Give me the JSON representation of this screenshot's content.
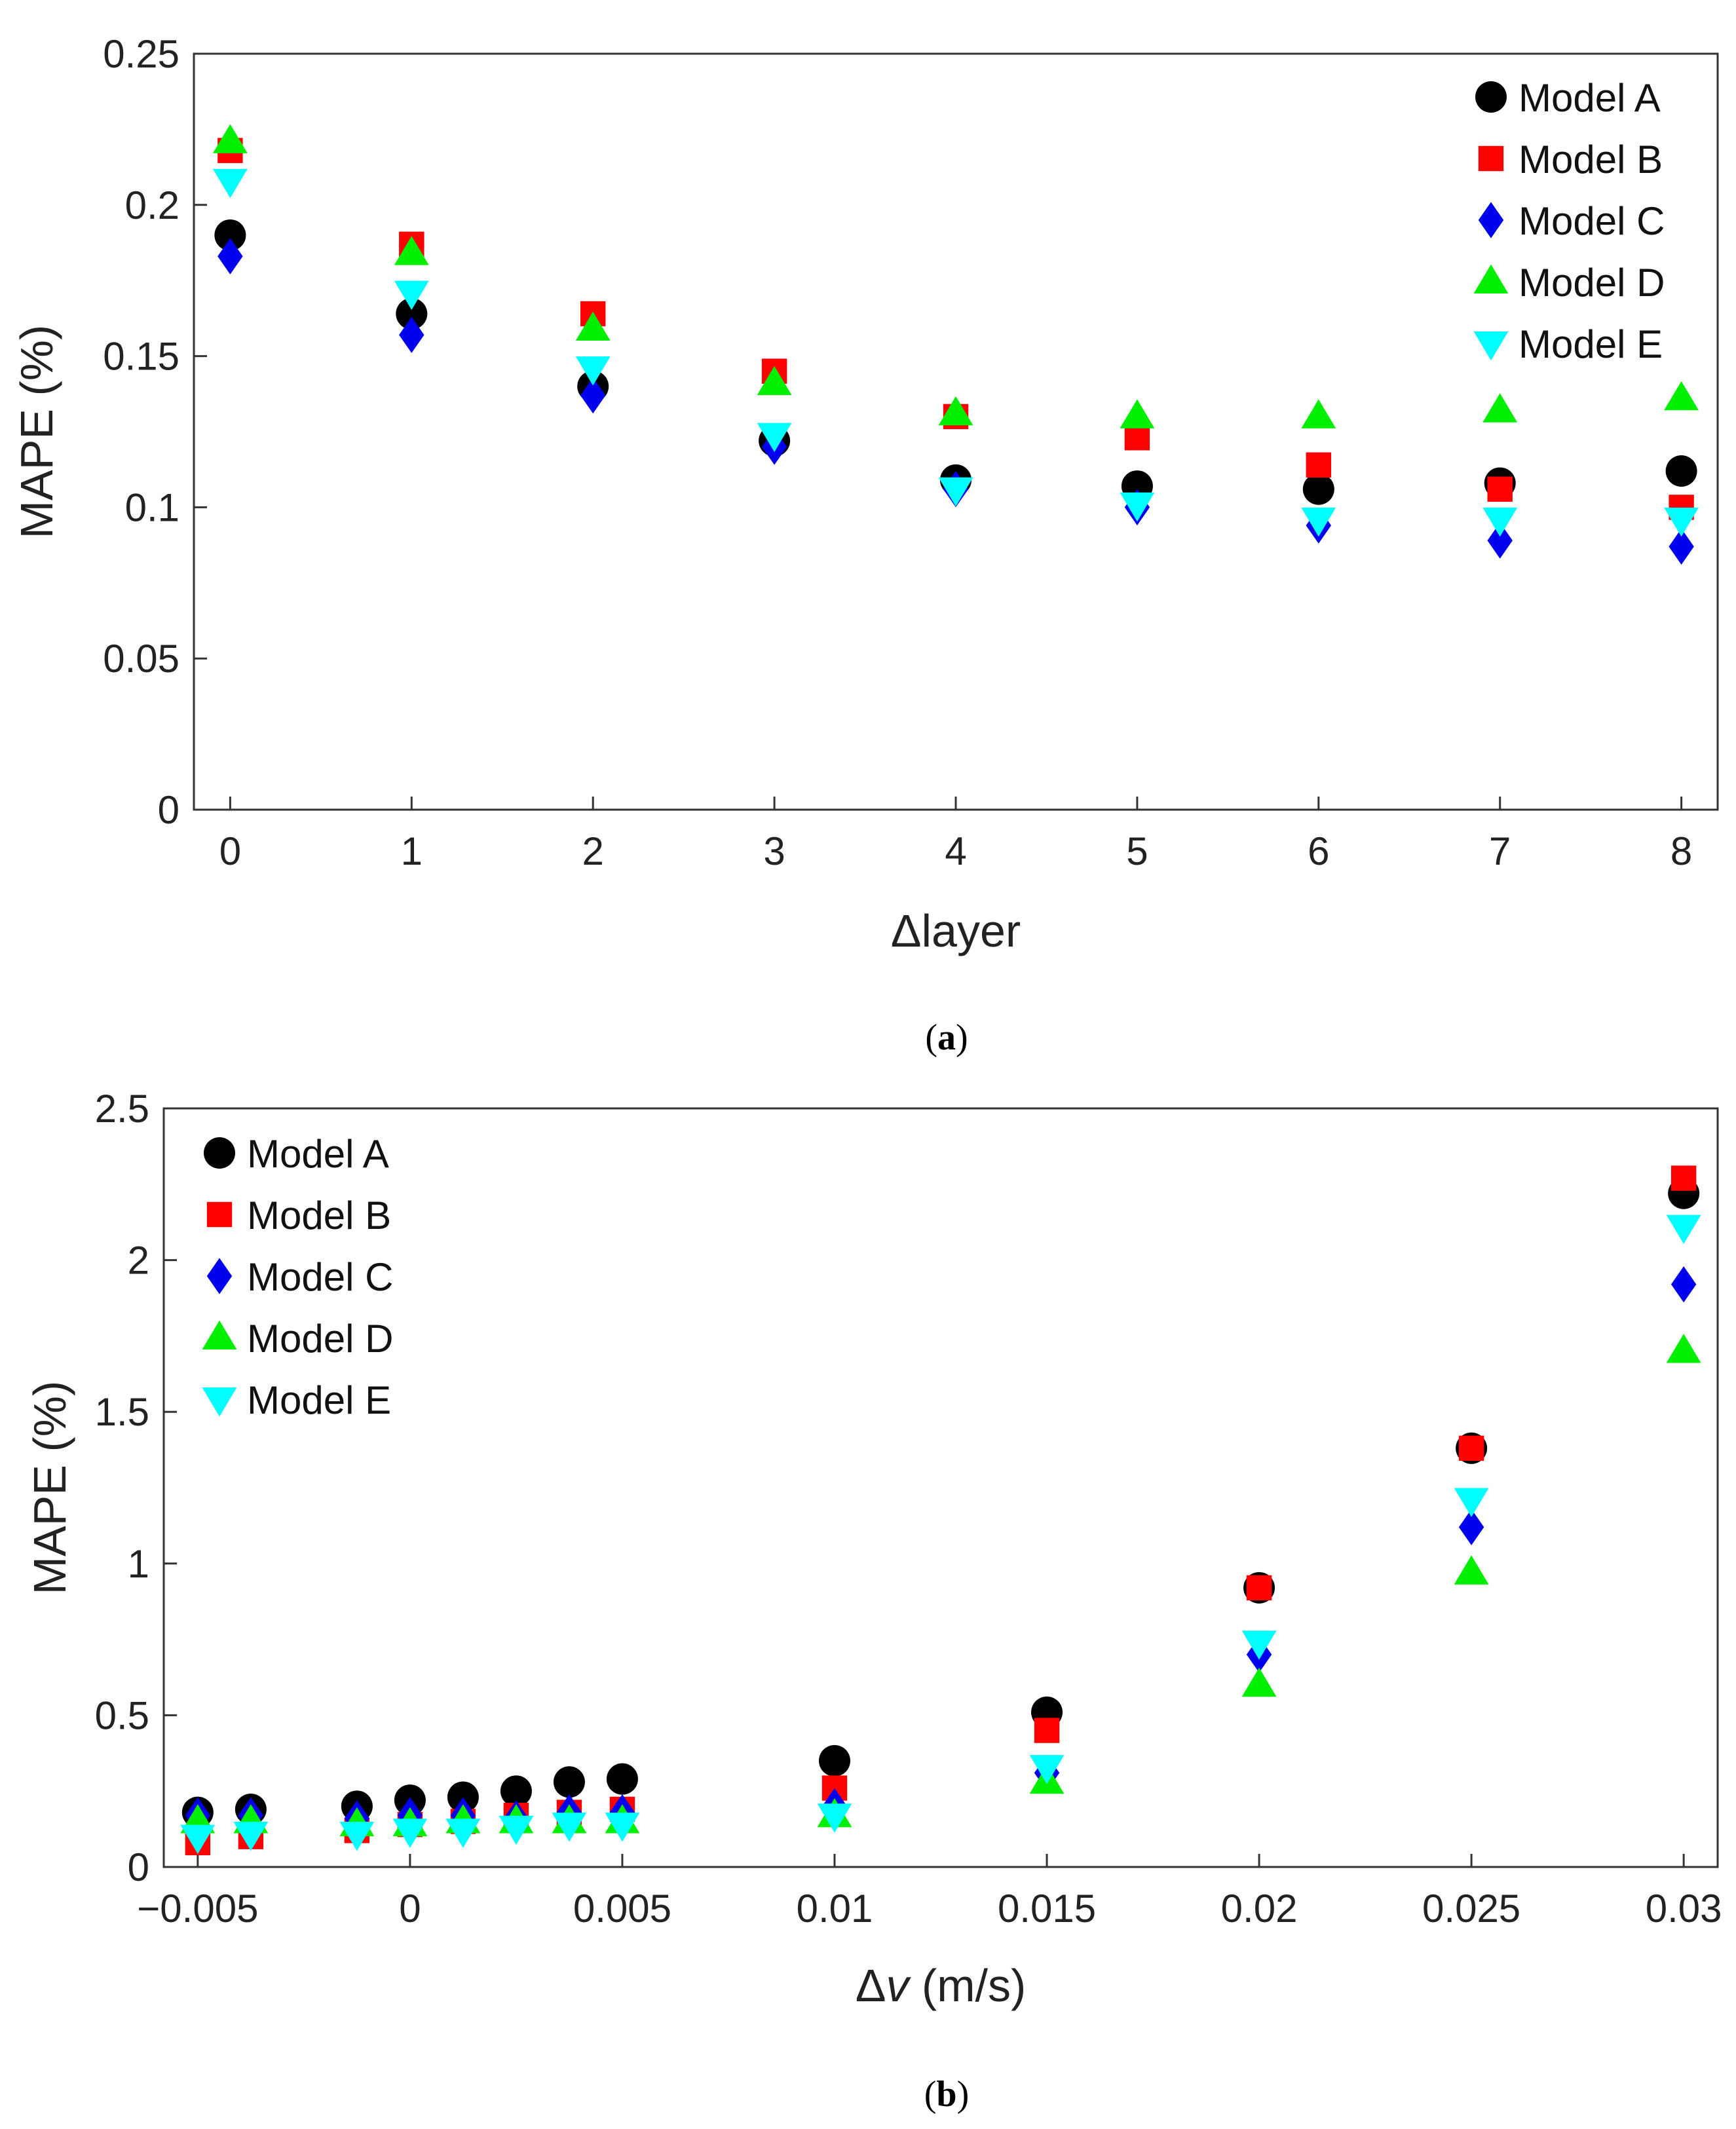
{
  "chart_data": [
    {
      "type": "scatter",
      "caption": "(a)",
      "caption_letter": "a",
      "xlabel": "Δlayer",
      "ylabel": "MAPE (%)",
      "xlim": [
        -0.2,
        8.2
      ],
      "ylim": [
        0,
        0.25
      ],
      "x_ticks": [
        0,
        1,
        2,
        3,
        4,
        5,
        6,
        7,
        8
      ],
      "x_tick_labels": [
        "0",
        "1",
        "2",
        "3",
        "4",
        "5",
        "6",
        "7",
        "8"
      ],
      "y_ticks": [
        0,
        0.05,
        0.1,
        0.15,
        0.2,
        0.25
      ],
      "y_tick_labels": [
        "0",
        "0.05",
        "0.1",
        "0.15",
        "0.2",
        "0.25"
      ],
      "legend_position": "top-right",
      "grid": false,
      "x": [
        0,
        1,
        2,
        3,
        4,
        5,
        6,
        7,
        8
      ],
      "series": [
        {
          "name": "Model A",
          "marker": "circle",
          "color": "#000000",
          "values": [
            0.19,
            0.164,
            0.14,
            0.122,
            0.109,
            0.107,
            0.106,
            0.108,
            0.112
          ]
        },
        {
          "name": "Model B",
          "marker": "square",
          "color": "#ff0000",
          "values": [
            0.218,
            0.187,
            0.164,
            0.145,
            0.13,
            0.123,
            0.114,
            0.106,
            0.1
          ]
        },
        {
          "name": "Model C",
          "marker": "diamond",
          "color": "#0000ee",
          "values": [
            0.183,
            0.157,
            0.137,
            0.12,
            0.106,
            0.1,
            0.094,
            0.089,
            0.087
          ]
        },
        {
          "name": "Model D",
          "marker": "triangle-up",
          "color": "#00ee00",
          "values": [
            0.221,
            0.184,
            0.159,
            0.141,
            0.131,
            0.13,
            0.13,
            0.132,
            0.136
          ]
        },
        {
          "name": "Model E",
          "marker": "triangle-down",
          "color": "#00ffff",
          "values": [
            0.208,
            0.171,
            0.146,
            0.124,
            0.106,
            0.101,
            0.096,
            0.096,
            0.096
          ]
        }
      ]
    },
    {
      "type": "scatter",
      "caption": "(b)",
      "caption_letter": "b",
      "xlabel_prefix": "Δ",
      "xlabel_var": "v",
      "xlabel_suffix": " (m/s)",
      "ylabel": "MAPE (%)",
      "xlim": [
        -0.0058,
        0.0308
      ],
      "ylim": [
        0,
        2.5
      ],
      "x_ticks": [
        -0.005,
        0,
        0.005,
        0.01,
        0.015,
        0.02,
        0.025,
        0.03
      ],
      "x_tick_labels": [
        "−0.005",
        "0",
        "0.005",
        "0.01",
        "0.015",
        "0.02",
        "0.025",
        "0.03"
      ],
      "y_ticks": [
        0,
        0.5,
        1,
        1.5,
        2,
        2.5
      ],
      "y_tick_labels": [
        "0",
        "0.5",
        "1",
        "1.5",
        "2",
        "2.5"
      ],
      "legend_position": "top-left",
      "grid": false,
      "x": [
        -0.005,
        -0.00375,
        -0.00125,
        0,
        0.00125,
        0.0025,
        0.00375,
        0.005,
        0.01,
        0.015,
        0.02,
        0.025,
        0.03
      ],
      "series": [
        {
          "name": "Model A",
          "marker": "circle",
          "color": "#000000",
          "values": [
            0.18,
            0.19,
            0.2,
            0.22,
            0.23,
            0.25,
            0.28,
            0.29,
            0.35,
            0.51,
            0.92,
            1.38,
            2.22
          ]
        },
        {
          "name": "Model B",
          "marker": "square",
          "color": "#ff0000",
          "values": [
            0.08,
            0.1,
            0.12,
            0.14,
            0.15,
            0.17,
            0.18,
            0.19,
            0.26,
            0.45,
            0.92,
            1.38,
            2.27
          ]
        },
        {
          "name": "Model C",
          "marker": "diamond",
          "color": "#0000ee",
          "values": [
            0.17,
            0.17,
            0.16,
            0.17,
            0.17,
            0.16,
            0.18,
            0.18,
            0.2,
            0.31,
            0.7,
            1.12,
            1.92
          ]
        },
        {
          "name": "Model D",
          "marker": "triangle-up",
          "color": "#00ee00",
          "values": [
            0.15,
            0.15,
            0.14,
            0.14,
            0.15,
            0.15,
            0.15,
            0.15,
            0.17,
            0.28,
            0.6,
            0.97,
            1.7
          ]
        },
        {
          "name": "Model E",
          "marker": "triangle-down",
          "color": "#00ffff",
          "values": [
            0.1,
            0.11,
            0.11,
            0.12,
            0.12,
            0.13,
            0.14,
            0.14,
            0.17,
            0.33,
            0.74,
            1.21,
            2.11
          ]
        }
      ]
    }
  ]
}
